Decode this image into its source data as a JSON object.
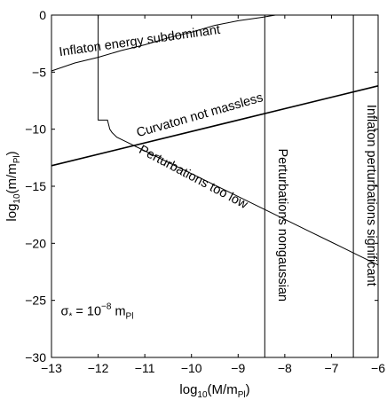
{
  "chart_data": {
    "type": "line",
    "title": "",
    "xlabel": {
      "prefix": "log",
      "prefix_sub": "10",
      "body": "(M/m",
      "body_sub": "Pl",
      "suffix": ")"
    },
    "ylabel": {
      "prefix": "log",
      "prefix_sub": "10",
      "body": "(m/m",
      "body_sub": "Pl",
      "suffix": ")"
    },
    "xlim": [
      -13,
      -6
    ],
    "ylim": [
      -30,
      0
    ],
    "xticks": [
      "-13",
      "-12",
      "-11",
      "-10",
      "-9",
      "-8",
      "-7",
      "-6"
    ],
    "yticks": [
      "0",
      "-5",
      "-10",
      "-15",
      "-20",
      "-25",
      "-30"
    ],
    "grid": false,
    "legend": "none",
    "series": [
      {
        "x": [
          -13,
          -12.5,
          -12,
          -11.5,
          -11,
          -10.5,
          -10,
          -9.5,
          -9,
          -8.5,
          -8.2
        ],
        "y": [
          -4.9,
          -4.2,
          -3.7,
          -3.1,
          -2.6,
          -2.0,
          -1.5,
          -0.9,
          -0.5,
          -0.2,
          0
        ]
      },
      {
        "x": [
          -12.0,
          -12.0,
          -11.8,
          -11.75,
          -11.7,
          -11.6,
          -11.4,
          -11.2,
          -11.0,
          -10.5,
          -10.0,
          -9.5,
          -9.0,
          -8.5,
          -8.0,
          -7.5,
          -7.0,
          -6.5,
          -6.0
        ],
        "y": [
          0,
          -9.2,
          -9.2,
          -10.0,
          -10.3,
          -10.7,
          -11.1,
          -11.5,
          -11.9,
          -12.9,
          -13.9,
          -14.9,
          -15.9,
          -16.9,
          -17.9,
          -18.9,
          -19.9,
          -20.9,
          -21.9
        ]
      },
      {
        "x": [
          -13,
          -6
        ],
        "y": [
          -13.2,
          -6.2
        ]
      },
      {
        "x": [
          -8.43,
          -8.43
        ],
        "y": [
          0,
          -30
        ]
      },
      {
        "x": [
          -6.53,
          -6.53
        ],
        "y": [
          0,
          -30
        ]
      }
    ],
    "annotations": [
      {
        "text": "Inflaton energy subdominant",
        "x": -11.1,
        "y": -2.6,
        "rotate": -8
      },
      {
        "text": "Curvaton not massless",
        "x": -9.8,
        "y": -9.1,
        "rotate": -16
      },
      {
        "text": "Perturbations too low",
        "x": -10.0,
        "y": -14.5,
        "rotate": 28
      },
      {
        "text": "Perturbations nongaussian",
        "x": -8.13,
        "y": -18.4,
        "rotate": 90
      },
      {
        "text": "Inflaton perturbations significant",
        "x": -6.23,
        "y": -15.8,
        "rotate": 90
      }
    ],
    "inset_label": {
      "base": "σ",
      "base_sub": "*",
      "middle": " = 10",
      "exp": "−8",
      "tail": " m",
      "tail_sub": "Pl",
      "x": -12.8,
      "y": -26.3
    }
  }
}
